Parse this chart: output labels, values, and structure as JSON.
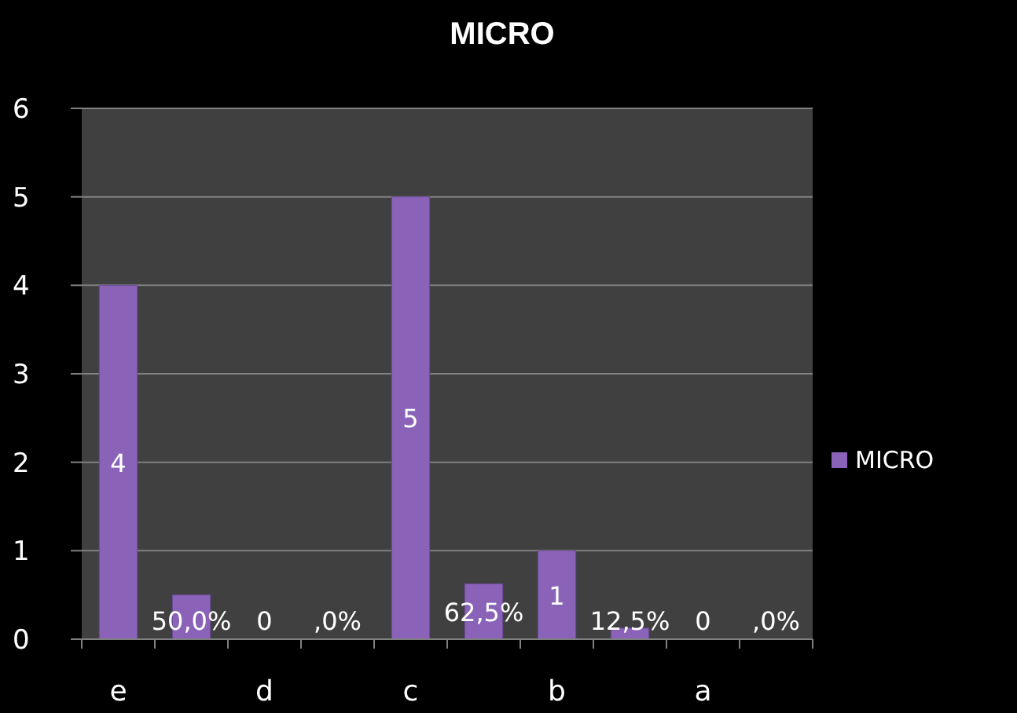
{
  "chart_data": {
    "type": "bar",
    "title": "MICRO",
    "categories": [
      "e",
      null,
      "d",
      null,
      "c",
      null,
      "b",
      null,
      "a",
      null
    ],
    "series": [
      {
        "name": "MICRO",
        "color": "#8a63b8",
        "values": [
          4,
          0.5,
          0,
          0,
          5,
          0.625,
          1,
          0.125,
          0,
          0
        ],
        "value_labels": [
          "4",
          "50,0%",
          "0",
          ",0%",
          "5",
          "62,5%",
          "1",
          "12,5%",
          "0",
          ",0%"
        ]
      }
    ],
    "ylim": [
      0,
      6
    ],
    "yticks": [
      0,
      1,
      2,
      3,
      4,
      5,
      6
    ],
    "grid": "y",
    "legend": "right"
  }
}
